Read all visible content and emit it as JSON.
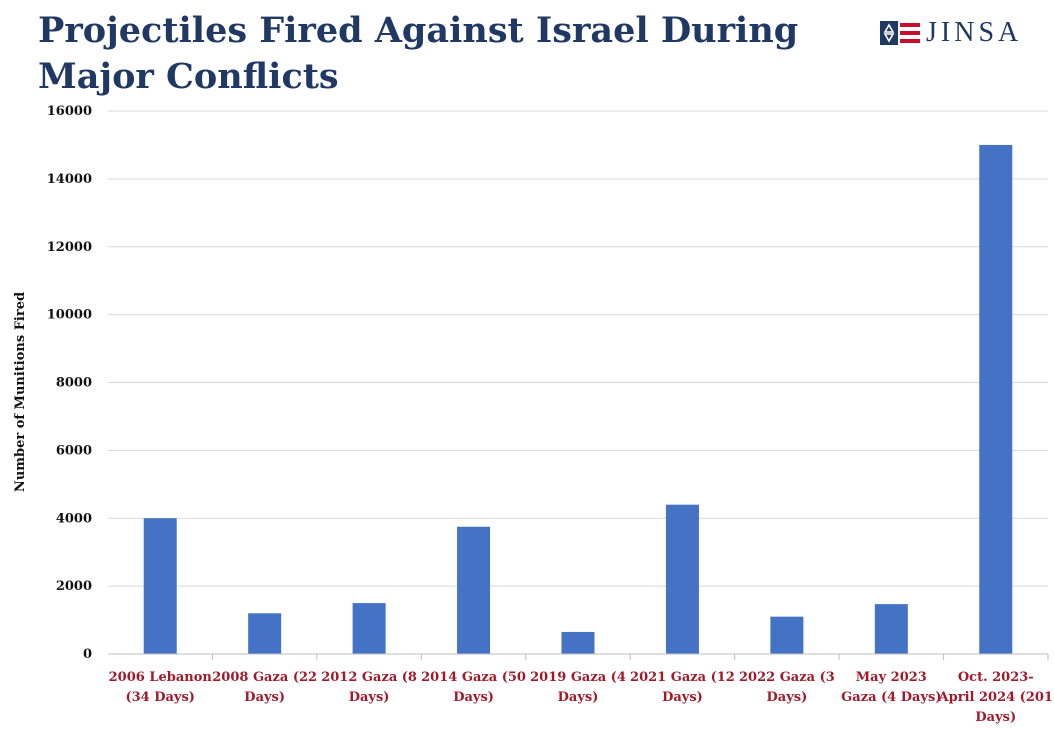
{
  "brand": {
    "name": "JINSA",
    "flag_colors": [
      "#1f3864",
      "#c8102e",
      "#ffffff"
    ]
  },
  "chart_data": {
    "type": "bar",
    "title": "Projectiles Fired Against Israel During Major Conflicts",
    "ylabel": "Number of Munitions Fired",
    "xlabel": "",
    "ylim": [
      0,
      16000
    ],
    "yticks": [
      0,
      2000,
      4000,
      6000,
      8000,
      10000,
      12000,
      14000,
      16000
    ],
    "grid": true,
    "bar_color": "#4472c4",
    "category_label_color": "#a01a2a",
    "categories": [
      [
        "2006 Lebanon",
        "(34 Days)"
      ],
      [
        "2008 Gaza (22",
        "Days)"
      ],
      [
        "2012 Gaza (8",
        "Days)"
      ],
      [
        "2014 Gaza (50",
        "Days)"
      ],
      [
        "2019 Gaza (4",
        "Days)"
      ],
      [
        "2021 Gaza (12",
        "Days)"
      ],
      [
        "2022 Gaza (3",
        "Days)"
      ],
      [
        "May 2023",
        "Gaza (4 Days)"
      ],
      [
        "Oct. 2023-",
        "April 2024 (201",
        "Days)"
      ]
    ],
    "values": [
      4000,
      1200,
      1500,
      3750,
      650,
      4400,
      1100,
      1470,
      15000
    ]
  }
}
